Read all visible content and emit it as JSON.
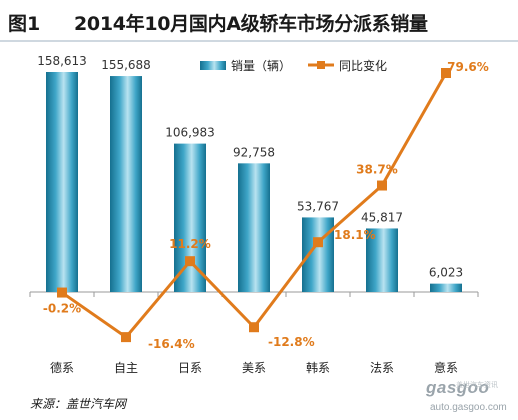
{
  "figure_number": "图1",
  "title": "2014年10月国内A级轿车市场分派系销量",
  "source": "来源：盖世汽车网",
  "watermark": {
    "logo": "gasgoo",
    "tagline": "盖世汽车资讯",
    "url": "auto.gasgoo.com"
  },
  "chart_data": {
    "type": "bar",
    "categories": [
      "德系",
      "自主",
      "日系",
      "美系",
      "韩系",
      "法系",
      "意系"
    ],
    "series": [
      {
        "name": "销量（辆）",
        "kind": "bar",
        "values": [
          158613,
          155688,
          106983,
          92758,
          53767,
          45817,
          6023
        ],
        "labels": [
          "158,613",
          "155,688",
          "106,983",
          "92,758",
          "53,767",
          "45,817",
          "6,023"
        ],
        "color": "#2b8fb3"
      },
      {
        "name": "同比变化",
        "kind": "line",
        "values": [
          -0.2,
          -16.4,
          11.2,
          -12.8,
          18.1,
          38.7,
          79.6
        ],
        "labels": [
          "-0.2%",
          "-16.4%",
          "11.2%",
          "-12.8%",
          "18.1%",
          "38.7%",
          "79.6%"
        ],
        "color": "#e07b1c"
      }
    ],
    "legend": "top-right",
    "grid": false
  }
}
